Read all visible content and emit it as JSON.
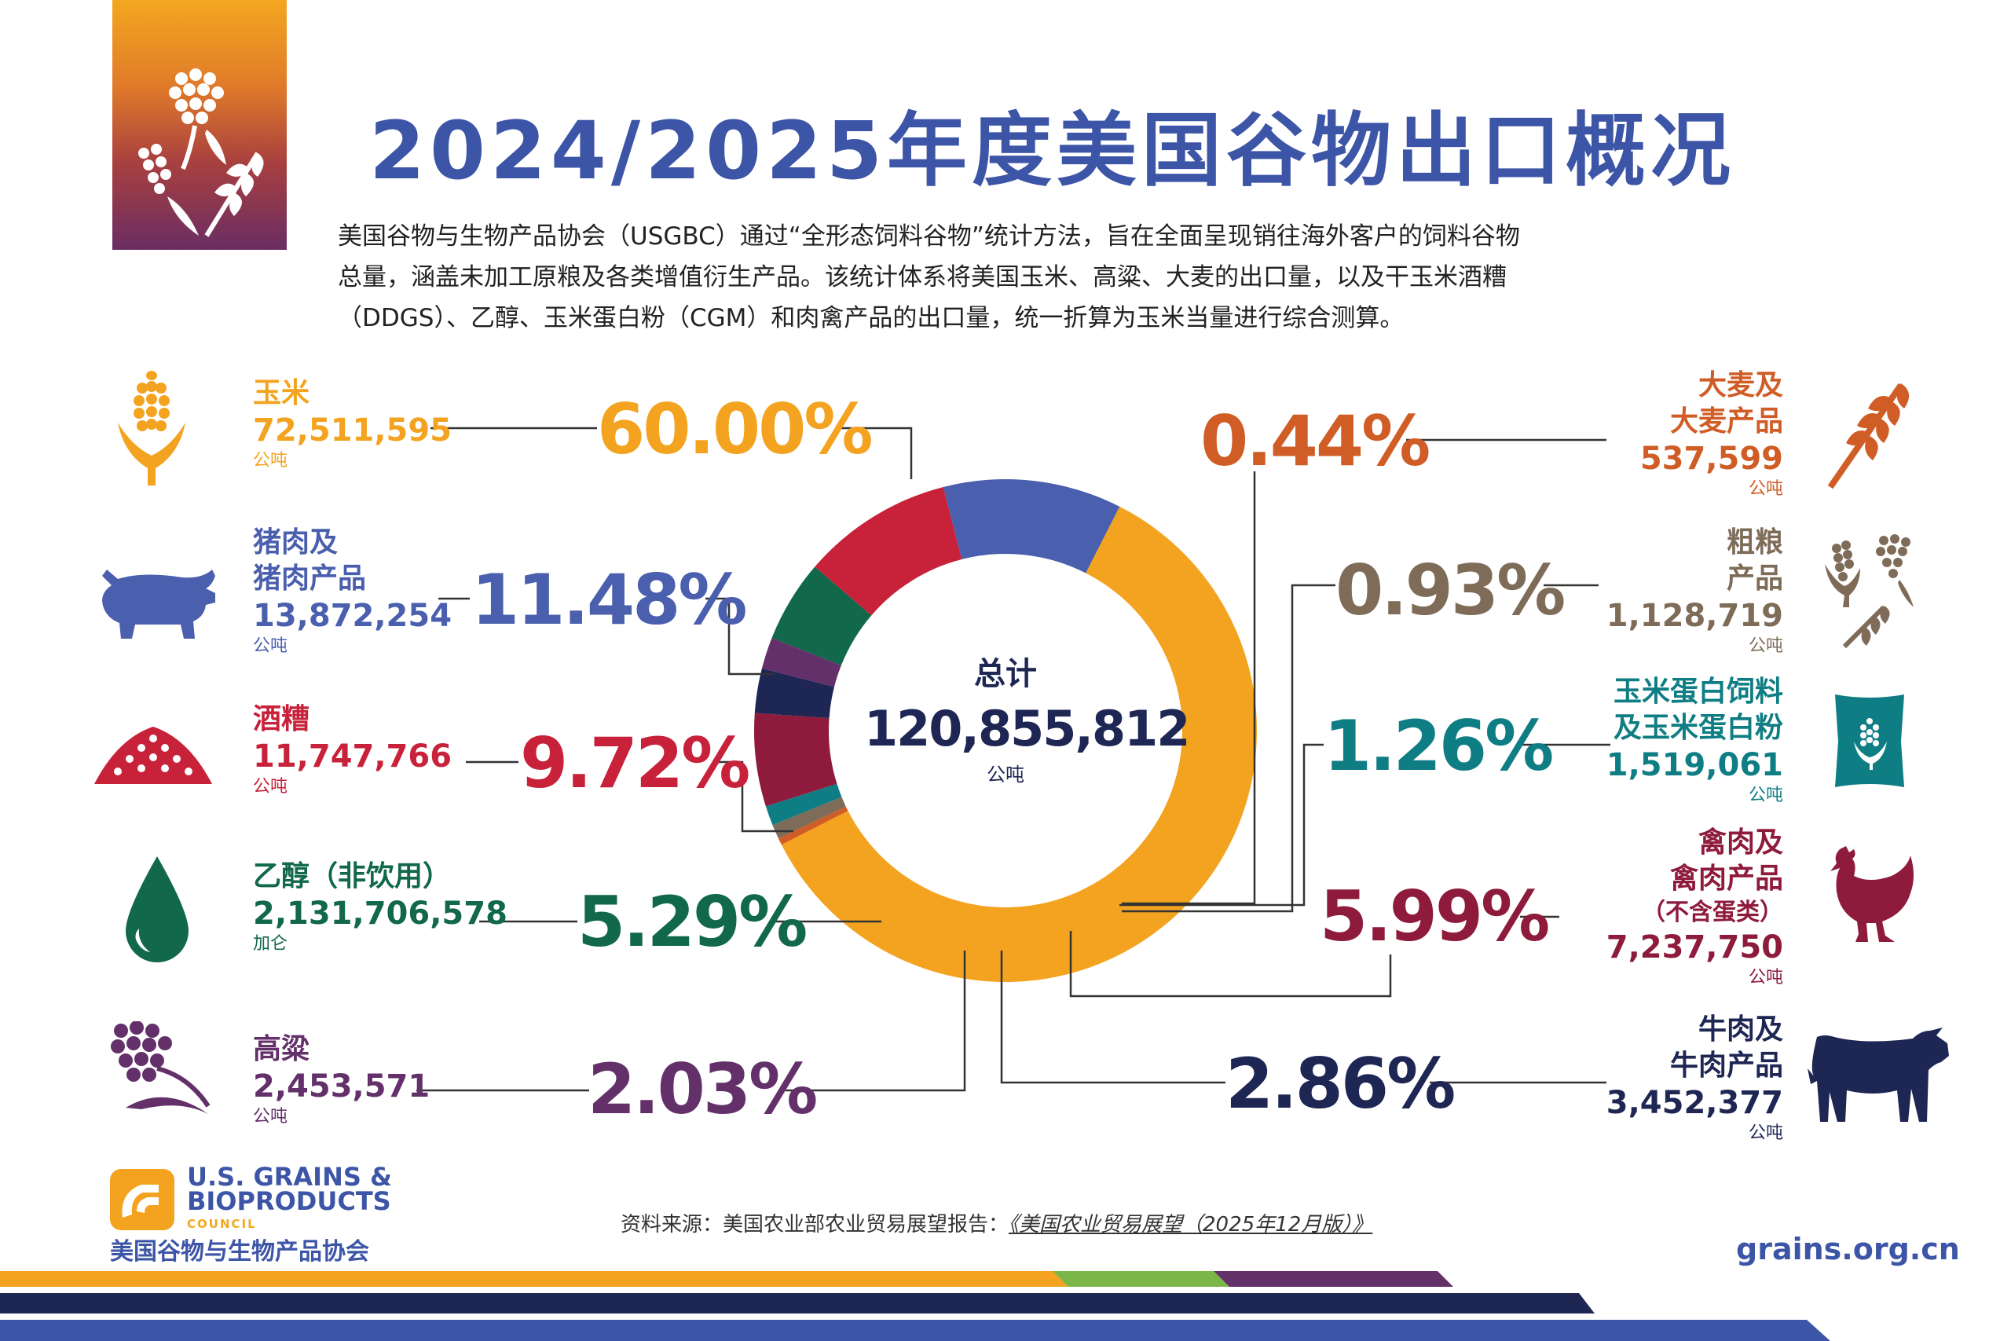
{
  "header": {
    "title": "2024/2025年度美国谷物出口概况",
    "intro_lines": [
      "美国谷物与生物产品协会（USGBC）通过“全形态饲料谷物”统计方法，旨在全面呈现销往海外客户的饲料谷物",
      "总量，涵盖未加工原粮及各类增值衍生产品。该统计体系将美国玉米、高粱、大麦的出口量，以及干玉米酒糟",
      "（DDGS）、乙醇、玉米蛋白粉（CGM）和肉禽产品的出口量，统一折算为玉米当量进行综合测算。"
    ]
  },
  "total": {
    "label": "总计",
    "value": "120,855,812",
    "unit": "公吨"
  },
  "categories": {
    "corn": {
      "name": "玉米",
      "value": "72,511,595",
      "unit": "公吨",
      "pct": "60.00%",
      "color": "#f3a31f"
    },
    "pork": {
      "name1": "猪肉及",
      "name2": "猪肉产品",
      "value": "13,872,254",
      "unit": "公吨",
      "pct": "11.48%",
      "color": "#4a5fad"
    },
    "ddgs": {
      "name": "酒糟",
      "value": "11,747,766",
      "unit": "公吨",
      "pct": "9.72%",
      "color": "#c8213a"
    },
    "ethanol": {
      "name": "乙醇（非饮用）",
      "value": "2,131,706,578",
      "unit": "加仑",
      "pct": "5.29%",
      "color": "#11684a"
    },
    "sorghum": {
      "name": "高粱",
      "value": "2,453,571",
      "unit": "公吨",
      "pct": "2.03%",
      "color": "#63306a"
    },
    "barley": {
      "name1": "大麦及",
      "name2": "大麦产品",
      "value": "537,599",
      "unit": "公吨",
      "pct": "0.44%",
      "color": "#d05d25"
    },
    "grain_products": {
      "name1": "粗粮",
      "name2": "产品",
      "value": "1,128,719",
      "unit": "公吨",
      "pct": "0.93%",
      "color": "#7e6c59"
    },
    "cgf": {
      "name1": "玉米蛋白饲料",
      "name2": "及玉米蛋白粉",
      "value": "1,519,061",
      "unit": "公吨",
      "pct": "1.26%",
      "color": "#0f7d84"
    },
    "poultry": {
      "name1": "禽肉及",
      "name2": "禽肉产品",
      "name3": "（不含蛋类）",
      "value": "7,237,750",
      "unit": "公吨",
      "pct": "5.99%",
      "color": "#8e1a3c"
    },
    "beef": {
      "name1": "牛肉及",
      "name2": "牛肉产品",
      "value": "3,452,377",
      "unit": "公吨",
      "pct": "2.86%",
      "color": "#1e2654"
    }
  },
  "chart_data": {
    "type": "pie",
    "title": "2024/2025年度美国谷物出口概况",
    "center_text": "总计 120,855,812 公吨",
    "unit": "%",
    "slices": [
      {
        "label": "玉米",
        "value": 60.0,
        "color": "#f3a31f"
      },
      {
        "label": "大麦及大麦产品",
        "value": 0.44,
        "color": "#d05d25"
      },
      {
        "label": "粗粮产品",
        "value": 0.93,
        "color": "#7e6c59"
      },
      {
        "label": "玉米蛋白饲料及玉米蛋白粉",
        "value": 1.26,
        "color": "#0f7d84"
      },
      {
        "label": "禽肉及禽肉产品（不含蛋类）",
        "value": 5.99,
        "color": "#8e1a3c"
      },
      {
        "label": "牛肉及牛肉产品",
        "value": 2.86,
        "color": "#1e2654"
      },
      {
        "label": "高粱",
        "value": 2.03,
        "color": "#63306a"
      },
      {
        "label": "乙醇（非饮用）",
        "value": 5.29,
        "color": "#11684a"
      },
      {
        "label": "酒糟",
        "value": 9.72,
        "color": "#c8213a"
      },
      {
        "label": "猪肉及猪肉产品",
        "value": 11.48,
        "color": "#4a5fad"
      }
    ]
  },
  "footer": {
    "source_prefix": "资料来源：美国农业部农业贸易展望报告：",
    "source_title": "《美国农业贸易展望（2025年12月版）》",
    "website": "grains.org.cn",
    "org_en_1": "U.S. GRAINS &",
    "org_en_2": "BIOPRODUCTS",
    "org_en_3": "COUNCIL",
    "org_cn": "美国谷物与生物产品协会"
  }
}
